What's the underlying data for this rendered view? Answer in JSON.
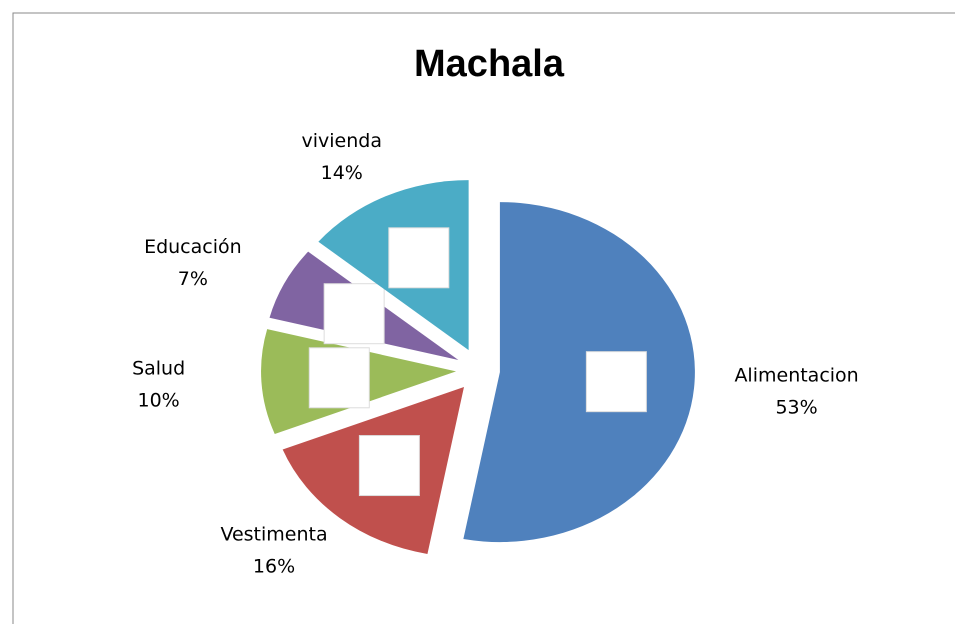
{
  "chart_data": {
    "type": "pie",
    "title": "Machala",
    "categories": [
      "Alimentacion",
      "Vestimenta",
      "Salud",
      "Educación",
      "vivienda"
    ],
    "values": [
      53,
      16,
      10,
      7,
      14
    ],
    "value_labels": [
      "53%",
      "16%",
      "10%",
      "7%",
      "14%"
    ],
    "colors": [
      "#4f81bd",
      "#c0504d",
      "#9bbb59",
      "#8064a2",
      "#4bacc6"
    ]
  }
}
